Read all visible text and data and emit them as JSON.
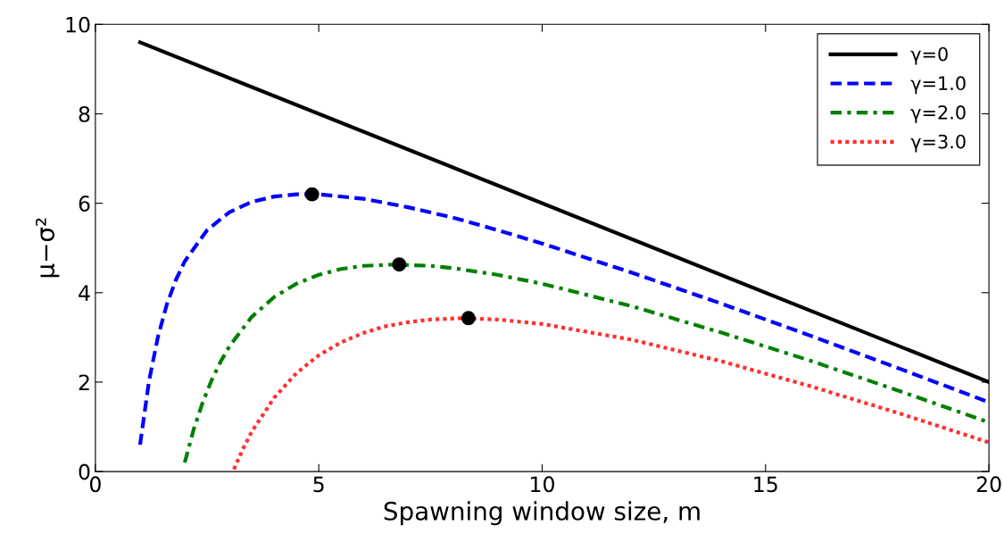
{
  "chart_data": {
    "type": "line",
    "xlabel": "Spawning window size, m",
    "ylabel": "μ−σ²",
    "xlim": [
      0,
      20
    ],
    "ylim": [
      0,
      10
    ],
    "xticks": [
      0,
      5,
      10,
      15,
      20
    ],
    "yticks": [
      0,
      2,
      4,
      6,
      8,
      10
    ],
    "grid": false,
    "legend": "top right",
    "marker": "none",
    "series": [
      {
        "name": "γ=0",
        "color": "#000000",
        "line_style": "solid",
        "x": [
          1,
          20
        ],
        "values": [
          9.6,
          2.0
        ]
      },
      {
        "name": "γ=1.0",
        "color": "#0000ff",
        "line_style": "dashed",
        "x": [
          1,
          1.2,
          1.4,
          1.6,
          1.8,
          2,
          2.5,
          3,
          3.5,
          4,
          4.5,
          5,
          6,
          7,
          8,
          9,
          10,
          12,
          14,
          16,
          18,
          20
        ],
        "values": [
          0.6,
          2.02,
          3.01,
          3.74,
          4.28,
          4.7,
          5.4,
          5.8,
          6.03,
          6.15,
          6.2,
          6.2,
          6.1,
          5.91,
          5.68,
          5.4,
          5.1,
          4.45,
          3.76,
          3.04,
          2.3,
          1.55
        ]
      },
      {
        "name": "γ=2.0",
        "color": "#008000",
        "line_style": "dashdot",
        "x": [
          2,
          2.2,
          2.4,
          2.6,
          2.8,
          3,
          3.5,
          4,
          4.5,
          5,
          5.5,
          6,
          6.7,
          7.5,
          8,
          9,
          10,
          12,
          14,
          16,
          18,
          20
        ],
        "values": [
          0.2,
          0.94,
          1.54,
          2.04,
          2.45,
          2.8,
          3.46,
          3.9,
          4.2,
          4.4,
          4.53,
          4.6,
          4.63,
          4.6,
          4.55,
          4.4,
          4.2,
          3.7,
          3.11,
          2.48,
          1.8,
          1.1
        ]
      },
      {
        "name": "γ=3.0",
        "color": "#ff3030",
        "line_style": "dotted",
        "x": [
          3.1,
          3.3,
          3.5,
          4,
          4.5,
          5,
          5.5,
          6,
          6.5,
          7,
          7.5,
          8.2,
          9,
          10,
          12,
          14,
          16,
          18,
          20
        ],
        "values": [
          0.05,
          0.5,
          0.89,
          1.65,
          2.2,
          2.6,
          2.89,
          3.1,
          3.25,
          3.34,
          3.4,
          3.43,
          3.4,
          3.3,
          2.95,
          2.47,
          1.91,
          1.3,
          0.65
        ]
      },
      {
        "type": "scatter",
        "color": "#000000",
        "marker": "circle",
        "x": [
          4.85,
          6.8,
          8.35
        ],
        "values": [
          6.2,
          4.63,
          3.43
        ]
      }
    ]
  }
}
